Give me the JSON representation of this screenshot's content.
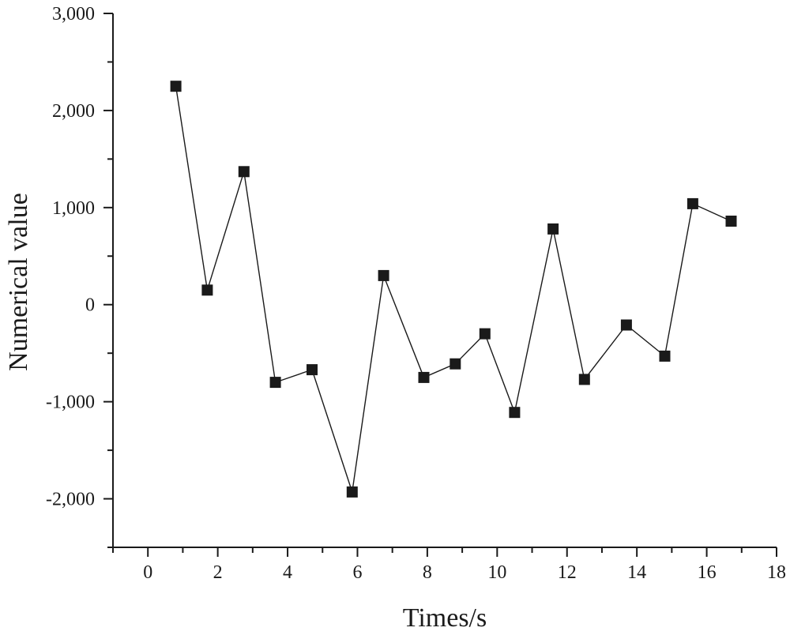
{
  "chart_data": {
    "type": "line",
    "title": "",
    "xlabel": "Times/s",
    "ylabel": "Numerical value",
    "xlim": [
      -1,
      18
    ],
    "ylim": [
      -2500,
      3000
    ],
    "x_major_ticks": [
      0,
      2,
      4,
      6,
      8,
      10,
      12,
      14,
      16,
      18
    ],
    "x_minor_ticks": [
      -1,
      1,
      3,
      5,
      7,
      9,
      11,
      13,
      15,
      17
    ],
    "y_major_ticks": [
      -2000,
      -1000,
      0,
      1000,
      2000,
      3000
    ],
    "y_minor_ticks": [
      -2500,
      -1500,
      -500,
      500,
      1500,
      2500
    ],
    "x_tick_labels": [
      "0",
      "2",
      "4",
      "6",
      "8",
      "10",
      "12",
      "14",
      "16",
      "18"
    ],
    "y_tick_labels": [
      "-2,000",
      "-1,000",
      "0",
      "1,000",
      "2,000",
      "3,000"
    ],
    "grid": false,
    "legend": null,
    "marker": "square",
    "color": "#1a1a1a",
    "series": [
      {
        "name": "Numerical value",
        "x": [
          0.8,
          1.7,
          2.75,
          3.65,
          4.7,
          5.85,
          6.75,
          7.9,
          8.8,
          9.65,
          10.5,
          11.6,
          12.5,
          13.7,
          14.8,
          15.6,
          16.7
        ],
        "y": [
          2250,
          150,
          1370,
          -800,
          -670,
          -1930,
          300,
          -750,
          -610,
          -300,
          -1110,
          780,
          -770,
          -210,
          -530,
          1040,
          860
        ]
      }
    ]
  }
}
